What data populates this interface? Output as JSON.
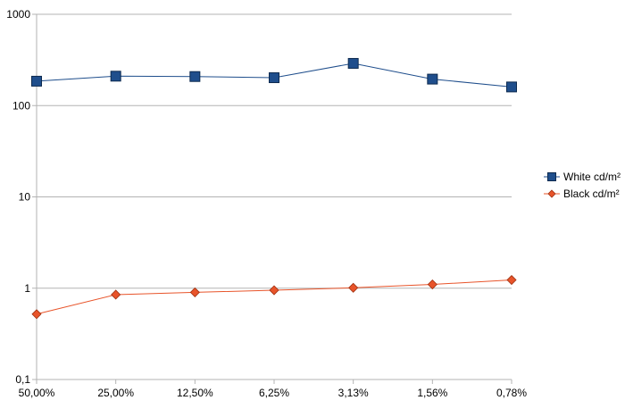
{
  "chart_data": {
    "type": "line",
    "title": "",
    "xlabel": "",
    "ylabel": "",
    "y_scale": "log",
    "ylim": [
      0.1,
      1000
    ],
    "y_ticks": [
      "0,1",
      "1",
      "10",
      "100",
      "1000"
    ],
    "categories": [
      "50,00%",
      "25,00%",
      "12,50%",
      "6,25%",
      "3,13%",
      "1,56%",
      "0,78%"
    ],
    "grid": "horizontal major lines",
    "legend_position": "right",
    "series": [
      {
        "name": "White cd/m²",
        "marker": "square",
        "color": "#1f4e8c",
        "values": [
          185,
          210,
          208,
          202,
          290,
          195,
          160
        ]
      },
      {
        "name": "Black cd/m²",
        "marker": "diamond",
        "color": "#e8542a",
        "values": [
          0.52,
          0.85,
          0.9,
          0.95,
          1.01,
          1.1,
          1.23
        ]
      }
    ]
  }
}
